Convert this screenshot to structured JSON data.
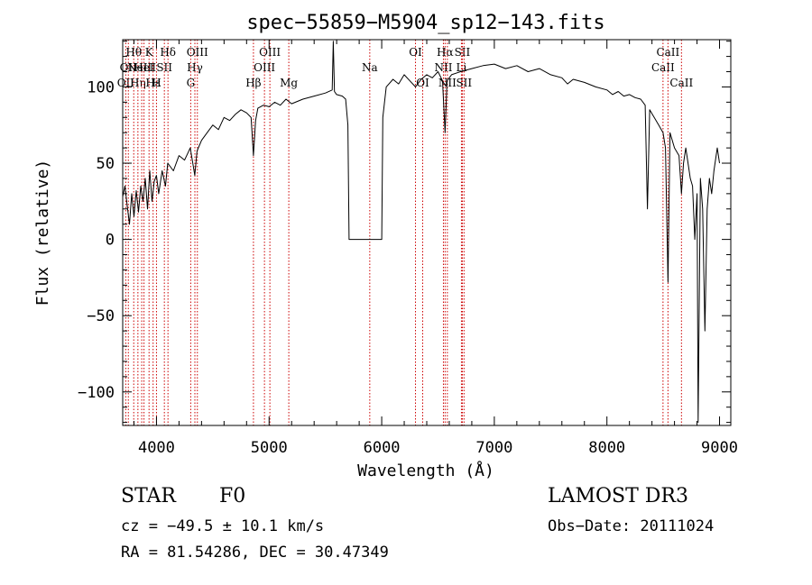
{
  "chart_data": {
    "type": "line",
    "title": "spec−55859−M5904_sp12−143.fits",
    "xlabel": "Wavelength (Å)",
    "ylabel": "Flux (relative)",
    "xlim": [
      3700,
      9100
    ],
    "ylim": [
      -122,
      131
    ],
    "x_ticks": [
      4000,
      5000,
      6000,
      7000,
      8000,
      9000
    ],
    "y_ticks": [
      -100,
      -50,
      0,
      50,
      100
    ],
    "y_tick_labels": [
      "−100",
      "−50",
      "0",
      "50",
      "100"
    ],
    "series": [
      {
        "name": "spectrum",
        "points": [
          [
            3700,
            28
          ],
          [
            3720,
            35
          ],
          [
            3740,
            22
          ],
          [
            3760,
            10
          ],
          [
            3780,
            30
          ],
          [
            3800,
            15
          ],
          [
            3820,
            32
          ],
          [
            3840,
            18
          ],
          [
            3860,
            35
          ],
          [
            3880,
            25
          ],
          [
            3900,
            40
          ],
          [
            3920,
            20
          ],
          [
            3940,
            45
          ],
          [
            3960,
            25
          ],
          [
            3980,
            38
          ],
          [
            4000,
            42
          ],
          [
            4020,
            30
          ],
          [
            4050,
            45
          ],
          [
            4080,
            35
          ],
          [
            4100,
            50
          ],
          [
            4150,
            45
          ],
          [
            4200,
            55
          ],
          [
            4250,
            52
          ],
          [
            4300,
            60
          ],
          [
            4340,
            42
          ],
          [
            4360,
            58
          ],
          [
            4400,
            65
          ],
          [
            4450,
            70
          ],
          [
            4500,
            75
          ],
          [
            4550,
            72
          ],
          [
            4600,
            80
          ],
          [
            4650,
            78
          ],
          [
            4700,
            82
          ],
          [
            4750,
            85
          ],
          [
            4800,
            83
          ],
          [
            4840,
            80
          ],
          [
            4861,
            55
          ],
          [
            4880,
            78
          ],
          [
            4900,
            86
          ],
          [
            4950,
            88
          ],
          [
            5000,
            87
          ],
          [
            5050,
            90
          ],
          [
            5100,
            88
          ],
          [
            5150,
            92
          ],
          [
            5200,
            89
          ],
          [
            5300,
            92
          ],
          [
            5400,
            94
          ],
          [
            5500,
            96
          ],
          [
            5560,
            98
          ],
          [
            5570,
            130
          ],
          [
            5580,
            97
          ],
          [
            5600,
            95
          ],
          [
            5650,
            94
          ],
          [
            5680,
            92
          ],
          [
            5700,
            75
          ],
          [
            5710,
            0
          ],
          [
            6000,
            0
          ],
          [
            6010,
            80
          ],
          [
            6040,
            100
          ],
          [
            6100,
            105
          ],
          [
            6150,
            102
          ],
          [
            6200,
            108
          ],
          [
            6250,
            104
          ],
          [
            6300,
            100
          ],
          [
            6350,
            105
          ],
          [
            6400,
            108
          ],
          [
            6450,
            106
          ],
          [
            6500,
            110
          ],
          [
            6540,
            104
          ],
          [
            6563,
            70
          ],
          [
            6580,
            104
          ],
          [
            6620,
            108
          ],
          [
            6700,
            110
          ],
          [
            6800,
            112
          ],
          [
            6900,
            114
          ],
          [
            7000,
            115
          ],
          [
            7100,
            112
          ],
          [
            7200,
            114
          ],
          [
            7300,
            110
          ],
          [
            7400,
            112
          ],
          [
            7500,
            108
          ],
          [
            7600,
            106
          ],
          [
            7650,
            102
          ],
          [
            7700,
            105
          ],
          [
            7800,
            103
          ],
          [
            7900,
            100
          ],
          [
            8000,
            98
          ],
          [
            8050,
            95
          ],
          [
            8100,
            97
          ],
          [
            8150,
            94
          ],
          [
            8200,
            95
          ],
          [
            8250,
            93
          ],
          [
            8300,
            92
          ],
          [
            8340,
            88
          ],
          [
            8360,
            20
          ],
          [
            8380,
            85
          ],
          [
            8420,
            80
          ],
          [
            8460,
            75
          ],
          [
            8498,
            70
          ],
          [
            8520,
            60
          ],
          [
            8542,
            -28
          ],
          [
            8560,
            70
          ],
          [
            8600,
            60
          ],
          [
            8640,
            55
          ],
          [
            8662,
            30
          ],
          [
            8680,
            50
          ],
          [
            8700,
            60
          ],
          [
            8720,
            50
          ],
          [
            8740,
            40
          ],
          [
            8760,
            35
          ],
          [
            8780,
            0
          ],
          [
            8800,
            30
          ],
          [
            8810,
            -120
          ],
          [
            8830,
            40
          ],
          [
            8850,
            20
          ],
          [
            8870,
            -60
          ],
          [
            8890,
            20
          ],
          [
            8910,
            40
          ],
          [
            8930,
            30
          ],
          [
            8950,
            45
          ],
          [
            8980,
            60
          ],
          [
            9000,
            50
          ]
        ]
      }
    ],
    "annotation_lines": [
      {
        "x": 3727,
        "label": "OII",
        "row": 3
      },
      {
        "x": 3750,
        "label": "OII",
        "row": 2
      },
      {
        "x": 3798,
        "label": "Hθ",
        "row": 1
      },
      {
        "x": 3835,
        "label": "Hη",
        "row": 3
      },
      {
        "x": 3869,
        "label": "NeIII",
        "row": 2
      },
      {
        "x": 3889,
        "label": "HeI",
        "row": 2
      },
      {
        "x": 3934,
        "label": "K",
        "row": 1
      },
      {
        "x": 3970,
        "label": "Hε",
        "row": 3
      },
      {
        "x": 4000,
        "label": "H",
        "row": 3
      },
      {
        "x": 4070,
        "label": "SII",
        "row": 2
      },
      {
        "x": 4102,
        "label": "Hδ",
        "row": 1
      },
      {
        "x": 4304,
        "label": "G",
        "row": 3
      },
      {
        "x": 4341,
        "label": "Hγ",
        "row": 2
      },
      {
        "x": 4363,
        "label": "OIII",
        "row": 1
      },
      {
        "x": 4861,
        "label": "Hβ",
        "row": 3
      },
      {
        "x": 4959,
        "label": "OIII",
        "row": 2
      },
      {
        "x": 5007,
        "label": "OIII",
        "row": 1
      },
      {
        "x": 5175,
        "label": "Mg",
        "row": 3
      },
      {
        "x": 5894,
        "label": "Na",
        "row": 2
      },
      {
        "x": 6300,
        "label": "OI",
        "row": 1
      },
      {
        "x": 6364,
        "label": "OI",
        "row": 3
      },
      {
        "x": 6548,
        "label": "NII",
        "row": 2
      },
      {
        "x": 6563,
        "label": "Hα",
        "row": 1
      },
      {
        "x": 6583,
        "label": "NII",
        "row": 3
      },
      {
        "x": 6708,
        "label": "Li",
        "row": 2
      },
      {
        "x": 6716,
        "label": "SII",
        "row": 1
      },
      {
        "x": 6731,
        "label": "SII",
        "row": 3
      },
      {
        "x": 8498,
        "label": "CaII",
        "row": 2
      },
      {
        "x": 8542,
        "label": "CaII",
        "row": 1
      },
      {
        "x": 8662,
        "label": "CaII",
        "row": 3
      }
    ]
  },
  "info": {
    "class": "STAR",
    "subclass": "F0",
    "survey": "LAMOST DR3",
    "cz": "cz = −49.5 ± 10.1 km/s",
    "obs_date": "Obs−Date: 20111024",
    "coords": "RA =  81.54286, DEC =  30.47349"
  }
}
